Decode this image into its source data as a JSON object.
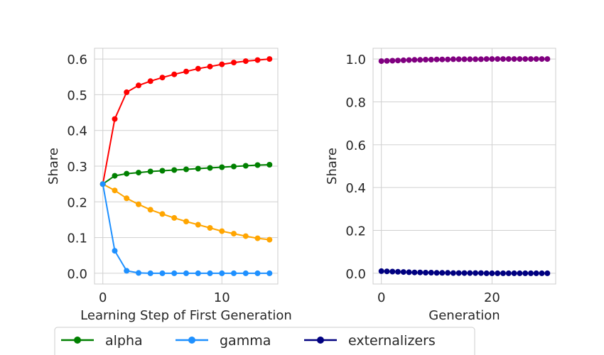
{
  "chart_data": [
    {
      "type": "line",
      "xlabel": "Learning Step of First Generation",
      "ylabel": "Share",
      "xlim": [
        -0.7,
        14.7
      ],
      "ylim": [
        -0.03,
        0.63
      ],
      "xticks": [
        0,
        10
      ],
      "yticks": [
        0.0,
        0.1,
        0.2,
        0.3,
        0.4,
        0.5,
        0.6
      ],
      "grid": true,
      "x": [
        0,
        1,
        2,
        3,
        4,
        5,
        6,
        7,
        8,
        9,
        10,
        11,
        12,
        13,
        14
      ],
      "series": [
        {
          "color": "#ff0000",
          "values": [
            0.25,
            0.432,
            0.507,
            0.526,
            0.538,
            0.548,
            0.557,
            0.565,
            0.573,
            0.579,
            0.585,
            0.59,
            0.594,
            0.597,
            0.6
          ]
        },
        {
          "name": "alpha",
          "color": "#008000",
          "values": [
            0.25,
            0.273,
            0.279,
            0.282,
            0.285,
            0.287,
            0.289,
            0.291,
            0.293,
            0.295,
            0.297,
            0.299,
            0.301,
            0.303,
            0.304
          ]
        },
        {
          "color": "#ffa500",
          "values": [
            0.25,
            0.232,
            0.21,
            0.193,
            0.178,
            0.166,
            0.155,
            0.145,
            0.136,
            0.127,
            0.118,
            0.111,
            0.104,
            0.098,
            0.094
          ]
        },
        {
          "name": "gamma",
          "color": "#1e90ff",
          "values": [
            0.25,
            0.063,
            0.007,
            0.001,
            0.0,
            0.0,
            0.0,
            0.0,
            0.0,
            0.0,
            0.0,
            0.0,
            0.0,
            0.0,
            0.0
          ]
        }
      ]
    },
    {
      "type": "scatter",
      "xlabel": "Generation",
      "ylabel": "Share",
      "xlim": [
        -1.5,
        31.5
      ],
      "ylim": [
        -0.05,
        1.05
      ],
      "xticks": [
        0,
        20
      ],
      "yticks": [
        0.0,
        0.2,
        0.4,
        0.6,
        0.8,
        1.0
      ],
      "grid": true,
      "x": [
        0,
        1,
        2,
        3,
        4,
        5,
        6,
        7,
        8,
        9,
        10,
        11,
        12,
        13,
        14,
        15,
        16,
        17,
        18,
        19,
        20,
        21,
        22,
        23,
        24,
        25,
        26,
        27,
        28,
        29,
        30
      ],
      "series": [
        {
          "color": "#800080",
          "values": [
            0.99,
            0.991,
            0.992,
            0.993,
            0.994,
            0.995,
            0.996,
            0.996,
            0.997,
            0.997,
            0.998,
            0.998,
            0.998,
            0.999,
            0.999,
            0.999,
            0.999,
            0.999,
            0.999,
            1.0,
            1.0,
            1.0,
            1.0,
            1.0,
            1.0,
            1.0,
            1.0,
            1.0,
            1.0,
            1.0,
            1.0
          ]
        },
        {
          "name": "externalizers",
          "color": "#000080",
          "values": [
            0.01,
            0.009,
            0.008,
            0.007,
            0.006,
            0.005,
            0.004,
            0.004,
            0.003,
            0.003,
            0.002,
            0.002,
            0.002,
            0.001,
            0.001,
            0.001,
            0.001,
            0.001,
            0.001,
            0.0,
            0.0,
            0.0,
            0.0,
            0.0,
            0.0,
            0.0,
            0.0,
            0.0,
            0.0,
            0.0,
            0.0
          ]
        }
      ]
    }
  ],
  "legend": {
    "placement": "bottom",
    "entries": [
      {
        "label": "alpha",
        "color": "#008000"
      },
      {
        "label": "gamma",
        "color": "#1e90ff"
      },
      {
        "label": "externalizers",
        "color": "#000080"
      }
    ]
  }
}
